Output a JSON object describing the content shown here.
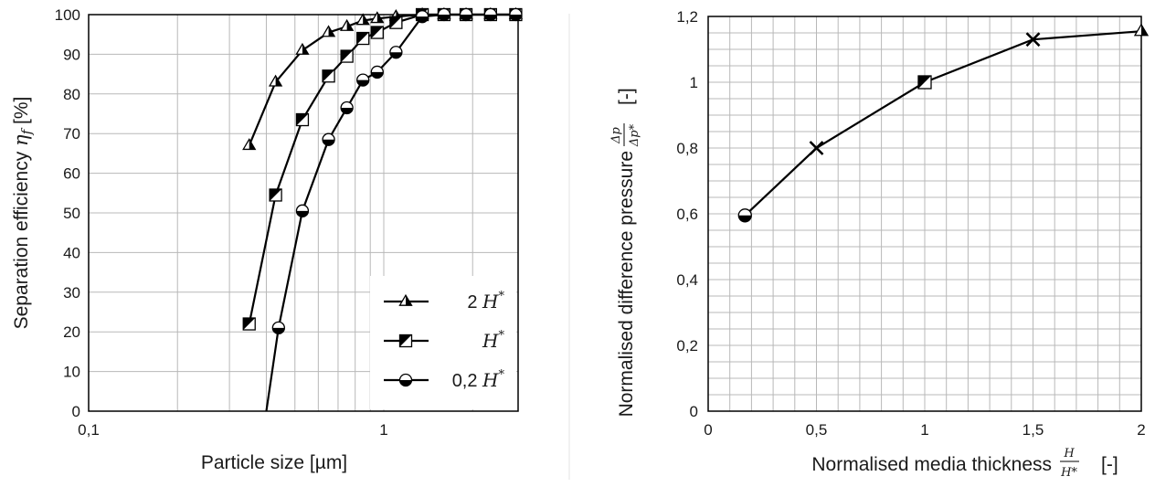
{
  "chart_data": [
    {
      "type": "line",
      "x_scale": "log",
      "xlim": [
        0.1,
        3
      ],
      "ylim": [
        0,
        100
      ],
      "x_ticks": [
        0.1,
        1
      ],
      "x_tick_labels": [
        "0,1",
        "1"
      ],
      "y_ticks": [
        0,
        10,
        20,
        30,
        40,
        50,
        60,
        70,
        80,
        90,
        100
      ],
      "y_tick_labels": [
        "0",
        "10",
        "20",
        "30",
        "40",
        "50",
        "60",
        "70",
        "80",
        "90",
        "100"
      ],
      "xlabel": "Particle size    [µm]",
      "ylabel": "Separation efficiency ",
      "ylabel_symbol": "η",
      "ylabel_sub": "f",
      "ylabel_unit": "   [%]",
      "grid": true,
      "legend_position": "bottom-right",
      "series": [
        {
          "name_prefix": "2 ",
          "name_sym": "H",
          "name_sup": "*",
          "marker": "triangle",
          "x": [
            0.35,
            0.43,
            0.53,
            0.65,
            0.75,
            0.85,
            0.95,
            1.1,
            1.35,
            1.6,
            1.9,
            2.3,
            2.8
          ],
          "y": [
            67,
            83,
            91,
            95.5,
            97,
            98.5,
            99,
            99.5,
            100,
            100,
            100,
            100,
            100
          ]
        },
        {
          "name_prefix": "",
          "name_sym": "H",
          "name_sup": "*",
          "marker": "square",
          "x": [
            0.35,
            0.43,
            0.53,
            0.65,
            0.75,
            0.85,
            0.95,
            1.1,
            1.35,
            1.6,
            1.9,
            2.3,
            2.8
          ],
          "y": [
            22,
            54.5,
            73.5,
            84.5,
            89.5,
            94,
            95.5,
            98,
            100,
            100,
            100,
            100,
            100
          ]
        },
        {
          "name_prefix": "0,2 ",
          "name_sym": "H",
          "name_sup": "*",
          "marker": "circle",
          "x": [
            0.4,
            0.44,
            0.53,
            0.65,
            0.75,
            0.85,
            0.95,
            1.1,
            1.35,
            1.6,
            1.9,
            2.3,
            2.8
          ],
          "y": [
            0,
            21,
            50.5,
            68.5,
            76.5,
            83.5,
            85.5,
            90.5,
            99.5,
            100,
            100,
            100,
            100
          ],
          "marker_skip_first": true
        }
      ]
    },
    {
      "type": "line",
      "xlim": [
        0,
        2
      ],
      "ylim": [
        0,
        1.2
      ],
      "x_ticks": [
        0,
        0.5,
        1,
        1.5,
        2
      ],
      "x_tick_labels": [
        "0",
        "0,5",
        "1",
        "1,5",
        "2"
      ],
      "y_ticks": [
        0,
        0.2,
        0.4,
        0.6,
        0.8,
        1,
        1.2
      ],
      "y_tick_labels": [
        "0",
        "0,2",
        "0,4",
        "0,6",
        "0,8",
        "1",
        "1,2"
      ],
      "xlabel": "Normalised media thickness ",
      "xlabel_frac_num": "H",
      "xlabel_frac_den": "H*",
      "xlabel_unit": "[-]",
      "ylabel": "Normalised difference pressure ",
      "ylabel_frac_num": "Δp",
      "ylabel_frac_den": "Δp*",
      "ylabel_unit": "[-]",
      "grid": true,
      "points": [
        {
          "x": 0.17,
          "y": 0.595,
          "marker": "circle"
        },
        {
          "x": 0.5,
          "y": 0.8,
          "marker": "x"
        },
        {
          "x": 1.0,
          "y": 1.0,
          "marker": "square"
        },
        {
          "x": 1.5,
          "y": 1.13,
          "marker": "x"
        },
        {
          "x": 2.0,
          "y": 1.155,
          "marker": "triangle"
        }
      ]
    }
  ]
}
